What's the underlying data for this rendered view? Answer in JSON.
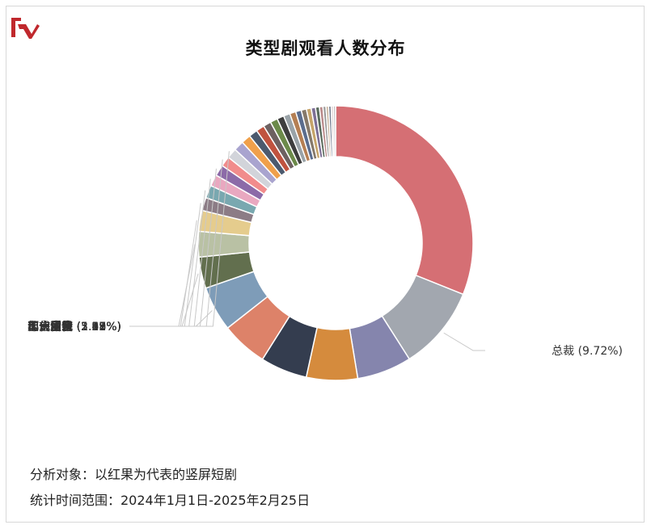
{
  "title": "类型剧观看人数分布",
  "footer": {
    "subject": "分析对象：以红果为代表的竖屏短剧",
    "range": "统计时间范围：2024年1月1日-2025年2月25日"
  },
  "chart_data": {
    "type": "pie",
    "donut": true,
    "title": "类型剧观看人数分布",
    "unit": "%",
    "slices": [
      {
        "label": "",
        "value": 30.5,
        "color": "#d56f74"
      },
      {
        "label": "总裁",
        "value": 9.72,
        "color": "#a2a7af",
        "pct_text": "(9.72%)"
      },
      {
        "label": "",
        "value": 6.3,
        "color": "#8585ad"
      },
      {
        "label": "",
        "value": 5.9,
        "color": "#d58b3d"
      },
      {
        "label": "",
        "value": 5.4,
        "color": "#343d4f"
      },
      {
        "label": "",
        "value": 5.35,
        "color": "#dd8269"
      },
      {
        "label": "现言甜宠",
        "value": 5.19,
        "color": "#7e9cb8",
        "pct_text": "(5.19%)"
      },
      {
        "label": "都市日常",
        "value": 3.62,
        "color": "#626f4e",
        "pct_text": "(3.62%)"
      },
      {
        "label": "玄幻仙侠",
        "value": 2.95,
        "color": "#b9c1a4",
        "pct_text": "(2.95%)"
      },
      {
        "label": "逆袭",
        "value": 2.41,
        "color": "#e5cc8d",
        "pct_text": "(2.41%)"
      },
      {
        "label": "重生",
        "value": 1.51,
        "color": "#8c7c86",
        "pct_text": "(1.51%)"
      },
      {
        "label": "年代爱情",
        "value": 1.48,
        "color": "#79a8b0",
        "pct_text": "(1.48%)"
      },
      {
        "label": "仙侠情缘",
        "value": 1.33,
        "color": "#e9a8c0",
        "pct_text": "(1.33%)"
      },
      {
        "label": "剧情",
        "value": 1.29,
        "color": "#8c6ba8",
        "pct_text": "(1.29%)"
      },
      {
        "label": "历史古代",
        "value": 1.18,
        "color": "#f18c8c",
        "pct_text": "(1.18%)"
      },
      {
        "label": "古装",
        "value": 1.17,
        "color": "#d2d4da",
        "pct_text": "(1.17%)"
      },
      {
        "label": "",
        "value": 1.16,
        "color": "#a9a4cf"
      },
      {
        "label": "",
        "value": 1.1,
        "color": "#f0a04b"
      },
      {
        "label": "",
        "value": 1.0,
        "color": "#4c5a6e"
      },
      {
        "label": "",
        "value": 0.95,
        "color": "#c0533f"
      },
      {
        "label": "",
        "value": 0.9,
        "color": "#6d6161"
      },
      {
        "label": "",
        "value": 0.85,
        "color": "#6c8a4a"
      },
      {
        "label": "",
        "value": 0.8,
        "color": "#3e3e3e"
      },
      {
        "label": "",
        "value": 0.75,
        "color": "#9aa3a8"
      },
      {
        "label": "",
        "value": 0.7,
        "color": "#b57f53"
      },
      {
        "label": "",
        "value": 0.65,
        "color": "#5b6d8e"
      },
      {
        "label": "",
        "value": 0.6,
        "color": "#86796a"
      },
      {
        "label": "",
        "value": 0.55,
        "color": "#c6a46a"
      },
      {
        "label": "",
        "value": 0.5,
        "color": "#7d6f95"
      },
      {
        "label": "",
        "value": 0.45,
        "color": "#596b5c"
      },
      {
        "label": "",
        "value": 0.4,
        "color": "#ba8a8a"
      },
      {
        "label": "",
        "value": 0.35,
        "color": "#9a9a9a"
      },
      {
        "label": "",
        "value": 0.3,
        "color": "#c7b29a"
      },
      {
        "label": "",
        "value": 0.3,
        "color": "#757e90"
      },
      {
        "label": "",
        "value": 0.25,
        "color": "#d9c7c7"
      },
      {
        "label": "",
        "value": 0.25,
        "color": "#bfbfbf"
      }
    ]
  }
}
